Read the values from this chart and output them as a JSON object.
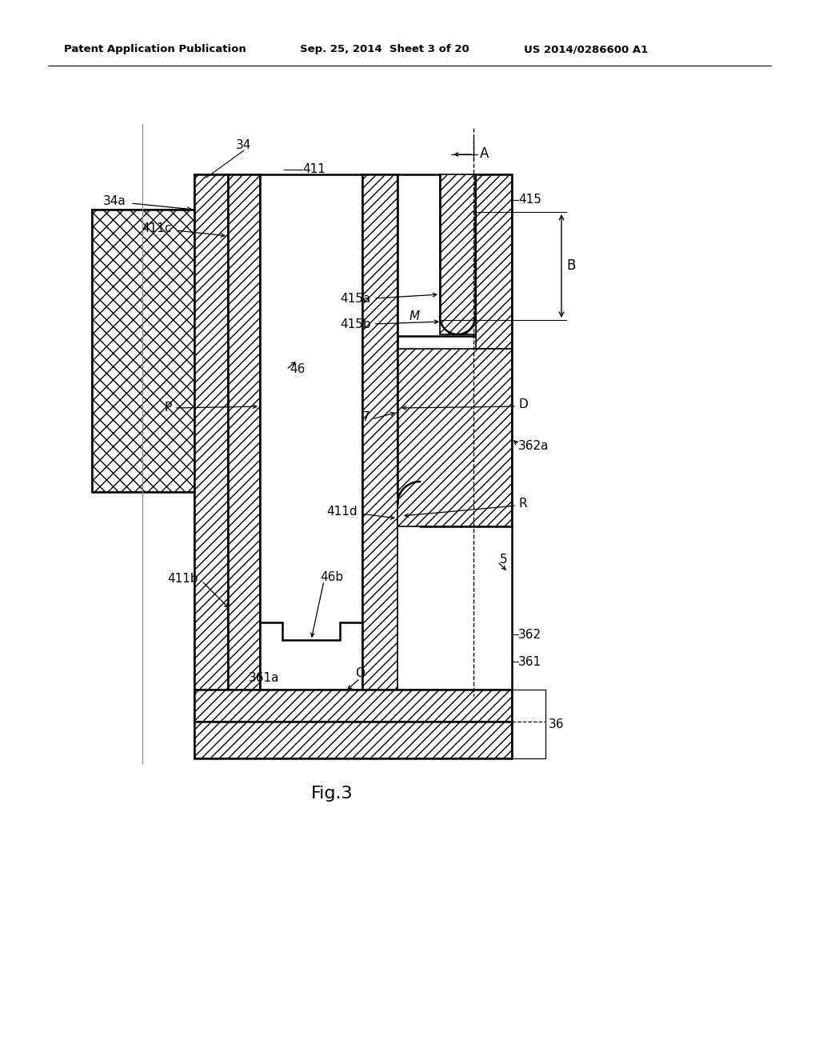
{
  "bg_color": "#ffffff",
  "lc": "#000000",
  "header_left": "Patent Application Publication",
  "header_mid": "Sep. 25, 2014  Sheet 3 of 20",
  "header_right": "US 2014/0286600 A1",
  "fig_label": "Fig.3"
}
